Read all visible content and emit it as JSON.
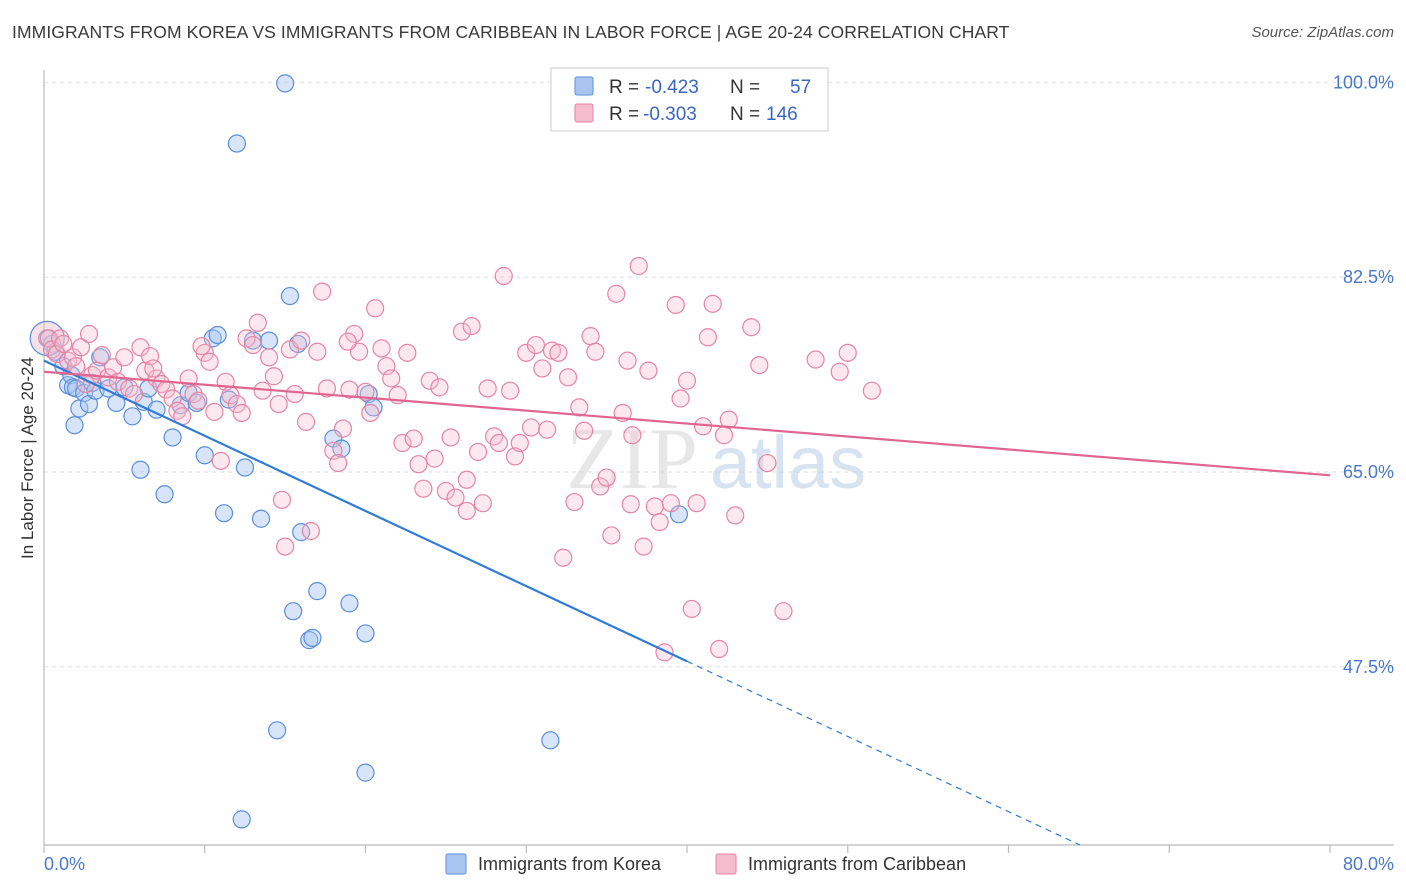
{
  "header": {
    "title": "IMMIGRANTS FROM KOREA VS IMMIGRANTS FROM CARIBBEAN IN LABOR FORCE | AGE 20-24 CORRELATION CHART",
    "source": "Source: ZipAtlas.com"
  },
  "watermark": {
    "zip": "ZIP",
    "atlas": "atlas"
  },
  "chart_data": {
    "type": "scatter",
    "title": "IMMIGRANTS FROM KOREA VS IMMIGRANTS FROM CARIBBEAN IN LABOR FORCE | AGE 20-24 CORRELATION CHART",
    "xlabel": "",
    "ylabel": "In Labor Force | Age 20-24",
    "xlim": [
      0,
      80
    ],
    "ylim": [
      31.5,
      102
    ],
    "x_tick_labels": [
      "0.0%",
      "80.0%"
    ],
    "y_ticks": [
      47.5,
      65.0,
      82.5,
      100.0
    ],
    "y_tick_labels": [
      "47.5%",
      "65.0%",
      "82.5%",
      "100.0%"
    ],
    "grid": true,
    "legend_position": "top-center",
    "stats": [
      {
        "r_label": "R =",
        "r": "-0.423",
        "n_label": "N =",
        "n": "57"
      },
      {
        "r_label": "R =",
        "r": "-0.303",
        "n_label": "N =",
        "n": "146"
      }
    ],
    "series": [
      {
        "name": "Immigrants from Korea",
        "color": "#5a8fdb",
        "fill": "#a9c6f0",
        "trend": {
          "x0": 0,
          "y0": 75.0,
          "x1": 40,
          "y1": 48.0,
          "dash_to_x": 80
        },
        "points": [
          [
            0.2,
            77.0
          ],
          [
            0.5,
            76.5
          ],
          [
            0.7,
            75.8
          ],
          [
            1.2,
            74.5
          ],
          [
            1.5,
            72.8
          ],
          [
            1.7,
            73.7
          ],
          [
            1.8,
            72.6
          ],
          [
            1.9,
            69.2
          ],
          [
            2.0,
            72.5
          ],
          [
            2.2,
            70.7
          ],
          [
            2.5,
            72.1
          ],
          [
            2.8,
            71.1
          ],
          [
            3.0,
            73.0
          ],
          [
            3.2,
            72.3
          ],
          [
            3.5,
            75.3
          ],
          [
            4.0,
            72.5
          ],
          [
            4.5,
            71.2
          ],
          [
            5.0,
            72.6
          ],
          [
            5.5,
            70.0
          ],
          [
            6.0,
            65.2
          ],
          [
            6.2,
            71.3
          ],
          [
            6.5,
            72.5
          ],
          [
            7.0,
            70.6
          ],
          [
            7.5,
            63.0
          ],
          [
            8.0,
            68.1
          ],
          [
            8.5,
            71.0
          ],
          [
            9.0,
            72.1
          ],
          [
            9.5,
            71.2
          ],
          [
            10.0,
            66.5
          ],
          [
            10.5,
            77.0
          ],
          [
            10.8,
            77.3
          ],
          [
            11.2,
            61.3
          ],
          [
            11.5,
            71.5
          ],
          [
            12.0,
            94.5
          ],
          [
            12.5,
            65.4
          ],
          [
            13.0,
            76.8
          ],
          [
            13.5,
            60.8
          ],
          [
            14.0,
            76.8
          ],
          [
            14.5,
            41.8
          ],
          [
            15.0,
            99.9
          ],
          [
            15.3,
            80.8
          ],
          [
            15.5,
            52.5
          ],
          [
            15.8,
            76.5
          ],
          [
            16.0,
            59.6
          ],
          [
            16.5,
            49.9
          ],
          [
            16.7,
            50.1
          ],
          [
            17.0,
            54.3
          ],
          [
            18.0,
            68.0
          ],
          [
            18.5,
            67.1
          ],
          [
            19.0,
            53.2
          ],
          [
            20.0,
            50.5
          ],
          [
            20.2,
            72.0
          ],
          [
            20.5,
            70.8
          ],
          [
            12.3,
            33.8
          ],
          [
            20.0,
            38.0
          ],
          [
            31.5,
            40.9
          ],
          [
            39.5,
            61.2
          ]
        ],
        "big_point": [
          0.2,
          77.0
        ]
      },
      {
        "name": "Immigrants from Caribbean",
        "color": "#e585a6",
        "fill": "#f5bccd",
        "trend": {
          "x0": 0,
          "y0": 74.0,
          "x1": 80,
          "y1": 64.7
        },
        "points": [
          [
            0.3,
            77.0
          ],
          [
            0.5,
            76.0
          ],
          [
            0.8,
            75.6
          ],
          [
            1.0,
            77.0
          ],
          [
            1.2,
            76.5
          ],
          [
            1.5,
            75.0
          ],
          [
            1.8,
            75.3
          ],
          [
            2.0,
            74.5
          ],
          [
            2.3,
            76.2
          ],
          [
            2.6,
            72.9
          ],
          [
            2.8,
            77.4
          ],
          [
            3.0,
            73.7
          ],
          [
            3.3,
            74.1
          ],
          [
            3.6,
            75.5
          ],
          [
            4.0,
            73.5
          ],
          [
            4.3,
            74.4
          ],
          [
            4.6,
            73.1
          ],
          [
            5.0,
            75.3
          ],
          [
            5.3,
            72.5
          ],
          [
            5.6,
            72.0
          ],
          [
            6.0,
            76.2
          ],
          [
            6.3,
            74.1
          ],
          [
            6.6,
            75.4
          ],
          [
            7.0,
            73.4
          ],
          [
            7.3,
            72.9
          ],
          [
            7.6,
            72.4
          ],
          [
            8.0,
            71.6
          ],
          [
            8.3,
            70.5
          ],
          [
            8.6,
            70.0
          ],
          [
            9.0,
            73.4
          ],
          [
            9.3,
            72.0
          ],
          [
            9.6,
            71.4
          ],
          [
            10.0,
            75.7
          ],
          [
            10.3,
            74.9
          ],
          [
            10.6,
            70.4
          ],
          [
            11.0,
            66.0
          ],
          [
            11.3,
            73.1
          ],
          [
            11.6,
            71.9
          ],
          [
            12.0,
            71.1
          ],
          [
            12.3,
            70.3
          ],
          [
            12.6,
            77.0
          ],
          [
            13.0,
            76.4
          ],
          [
            13.3,
            78.4
          ],
          [
            13.6,
            72.3
          ],
          [
            14.0,
            75.3
          ],
          [
            14.3,
            73.6
          ],
          [
            14.6,
            71.1
          ],
          [
            15.0,
            58.3
          ],
          [
            15.3,
            76.0
          ],
          [
            15.6,
            72.0
          ],
          [
            16.0,
            76.8
          ],
          [
            16.3,
            69.5
          ],
          [
            16.6,
            59.7
          ],
          [
            17.0,
            75.8
          ],
          [
            17.3,
            81.2
          ],
          [
            17.6,
            72.5
          ],
          [
            18.0,
            66.9
          ],
          [
            18.3,
            65.8
          ],
          [
            18.6,
            68.9
          ],
          [
            19.0,
            72.4
          ],
          [
            19.3,
            77.4
          ],
          [
            19.6,
            75.8
          ],
          [
            20.0,
            72.2
          ],
          [
            20.3,
            70.3
          ],
          [
            20.6,
            79.7
          ],
          [
            21.0,
            76.1
          ],
          [
            21.3,
            74.5
          ],
          [
            21.6,
            73.4
          ],
          [
            22.0,
            71.9
          ],
          [
            22.3,
            67.6
          ],
          [
            22.6,
            75.7
          ],
          [
            23.0,
            68.0
          ],
          [
            23.3,
            65.7
          ],
          [
            23.6,
            63.5
          ],
          [
            24.0,
            73.2
          ],
          [
            24.3,
            66.2
          ],
          [
            24.6,
            72.6
          ],
          [
            25.0,
            63.3
          ],
          [
            25.3,
            68.1
          ],
          [
            25.6,
            62.7
          ],
          [
            26.0,
            77.6
          ],
          [
            26.3,
            64.3
          ],
          [
            26.6,
            78.1
          ],
          [
            27.0,
            66.8
          ],
          [
            27.3,
            62.2
          ],
          [
            27.6,
            72.5
          ],
          [
            28.0,
            68.2
          ],
          [
            28.3,
            67.6
          ],
          [
            28.6,
            82.6
          ],
          [
            29.0,
            72.3
          ],
          [
            29.3,
            66.4
          ],
          [
            29.6,
            67.6
          ],
          [
            30.0,
            75.7
          ],
          [
            30.3,
            69.0
          ],
          [
            30.6,
            76.4
          ],
          [
            31.0,
            74.3
          ],
          [
            31.3,
            68.8
          ],
          [
            31.6,
            75.9
          ],
          [
            32.0,
            75.7
          ],
          [
            32.3,
            57.3
          ],
          [
            32.6,
            73.5
          ],
          [
            33.0,
            62.3
          ],
          [
            33.3,
            70.8
          ],
          [
            33.6,
            68.7
          ],
          [
            34.0,
            77.2
          ],
          [
            34.3,
            75.8
          ],
          [
            34.6,
            63.7
          ],
          [
            35.0,
            64.5
          ],
          [
            35.3,
            59.3
          ],
          [
            35.6,
            81.0
          ],
          [
            36.0,
            70.3
          ],
          [
            36.3,
            75.0
          ],
          [
            36.6,
            68.3
          ],
          [
            37.0,
            83.5
          ],
          [
            37.3,
            58.3
          ],
          [
            37.6,
            74.1
          ],
          [
            38.0,
            61.9
          ],
          [
            38.3,
            60.5
          ],
          [
            38.6,
            48.8
          ],
          [
            39.0,
            62.2
          ],
          [
            39.3,
            80.0
          ],
          [
            39.6,
            71.6
          ],
          [
            40.0,
            73.2
          ],
          [
            40.3,
            52.7
          ],
          [
            40.6,
            62.2
          ],
          [
            41.0,
            69.1
          ],
          [
            41.3,
            77.1
          ],
          [
            41.6,
            80.1
          ],
          [
            42.0,
            49.1
          ],
          [
            42.3,
            68.3
          ],
          [
            42.6,
            69.7
          ],
          [
            43.0,
            61.1
          ],
          [
            44.0,
            78.0
          ],
          [
            44.5,
            74.6
          ],
          [
            45.0,
            65.8
          ],
          [
            46.0,
            52.5
          ],
          [
            48.0,
            75.1
          ],
          [
            49.5,
            74.0
          ],
          [
            50.0,
            75.7
          ],
          [
            51.5,
            72.3
          ],
          [
            36.5,
            62.1
          ],
          [
            14.8,
            62.5
          ],
          [
            26.3,
            61.5
          ],
          [
            18.9,
            76.7
          ],
          [
            9.8,
            76.3
          ],
          [
            6.8,
            74.3
          ]
        ]
      }
    ]
  }
}
